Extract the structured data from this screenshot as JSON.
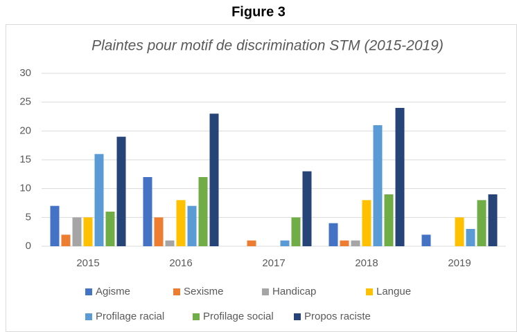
{
  "figure_label": "Figure 3",
  "chart_data": {
    "type": "bar",
    "title": "Plaintes pour motif de discrimination STM (2015-2019)",
    "categories": [
      "2015",
      "2016",
      "2017",
      "2018",
      "2019"
    ],
    "series": [
      {
        "name": "Agisme",
        "color": "#4472c4",
        "values": [
          7,
          12,
          0,
          4,
          2
        ]
      },
      {
        "name": "Sexisme",
        "color": "#ed7d31",
        "values": [
          2,
          5,
          1,
          1,
          0
        ]
      },
      {
        "name": "Handicap",
        "color": "#a5a5a5",
        "values": [
          5,
          1,
          0,
          1,
          0
        ]
      },
      {
        "name": "Langue",
        "color": "#ffc000",
        "values": [
          5,
          8,
          0,
          8,
          5
        ]
      },
      {
        "name": "Profilage racial",
        "color": "#5b9bd5",
        "values": [
          16,
          7,
          1,
          21,
          3
        ]
      },
      {
        "name": "Profilage social",
        "color": "#70ad47",
        "values": [
          6,
          12,
          5,
          9,
          8
        ]
      },
      {
        "name": "Propos raciste",
        "color": "#264478",
        "values": [
          19,
          23,
          13,
          24,
          9
        ]
      }
    ],
    "ylim": [
      0,
      30
    ],
    "yticks": [
      0,
      5,
      10,
      15,
      20,
      25,
      30
    ],
    "grid": true,
    "legend": "bottom"
  }
}
